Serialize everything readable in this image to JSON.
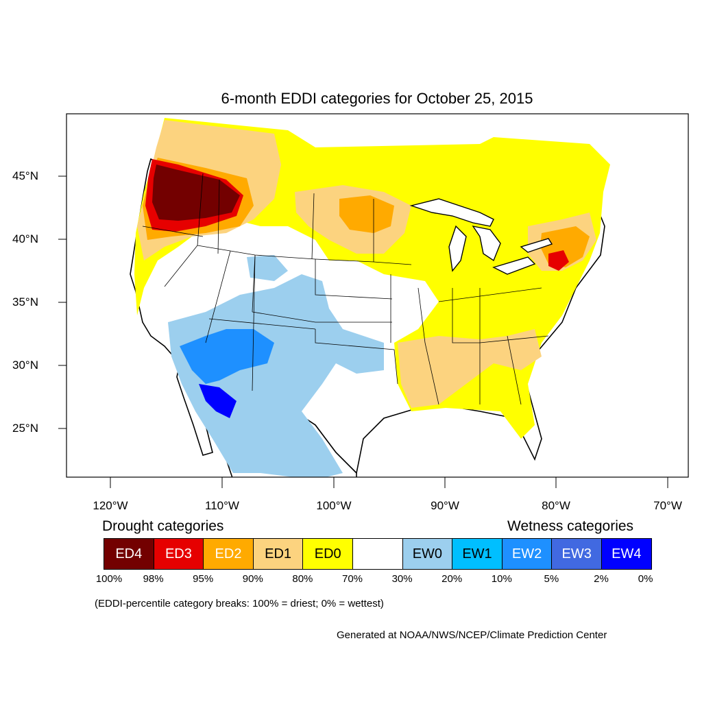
{
  "title": "6-month EDDI categories for October 25, 2015",
  "lat_labels": [
    "45°N",
    "40°N",
    "35°N",
    "30°N",
    "25°N"
  ],
  "lon_labels": [
    "120°W",
    "110°W",
    "100°W",
    "90°W",
    "80°W",
    "70°W"
  ],
  "legend": {
    "drought_heading": "Drought categories",
    "wetness_heading": "Wetness categories",
    "categories": [
      {
        "label": "ED4",
        "color": "#730000",
        "text_color": "#ffffff"
      },
      {
        "label": "ED3",
        "color": "#e60000",
        "text_color": "#ffffff"
      },
      {
        "label": "ED2",
        "color": "#ffaa00",
        "text_color": "#ffffff"
      },
      {
        "label": "ED1",
        "color": "#fcd37f",
        "text_color": "#000000"
      },
      {
        "label": "ED0",
        "color": "#ffff00",
        "text_color": "#000000"
      },
      {
        "label": "",
        "color": "#ffffff",
        "text_color": "#000000"
      },
      {
        "label": "EW0",
        "color": "#9ccfee",
        "text_color": "#000000"
      },
      {
        "label": "EW1",
        "color": "#00bfff",
        "text_color": "#000000"
      },
      {
        "label": "EW2",
        "color": "#1e90ff",
        "text_color": "#ffffff"
      },
      {
        "label": "EW3",
        "color": "#4169e1",
        "text_color": "#ffffff"
      },
      {
        "label": "EW4",
        "color": "#0000ff",
        "text_color": "#ffffff"
      }
    ],
    "percent_breaks": [
      "100%",
      "98%",
      "95%",
      "90%",
      "80%",
      "70%",
      "30%",
      "20%",
      "10%",
      "5%",
      "2%",
      "0%"
    ]
  },
  "note": "(EDDI-percentile category breaks: 100% = driest; 0% = wettest)",
  "credit": "Generated at NOAA/NWS/NCEP/Climate Prediction Center"
}
